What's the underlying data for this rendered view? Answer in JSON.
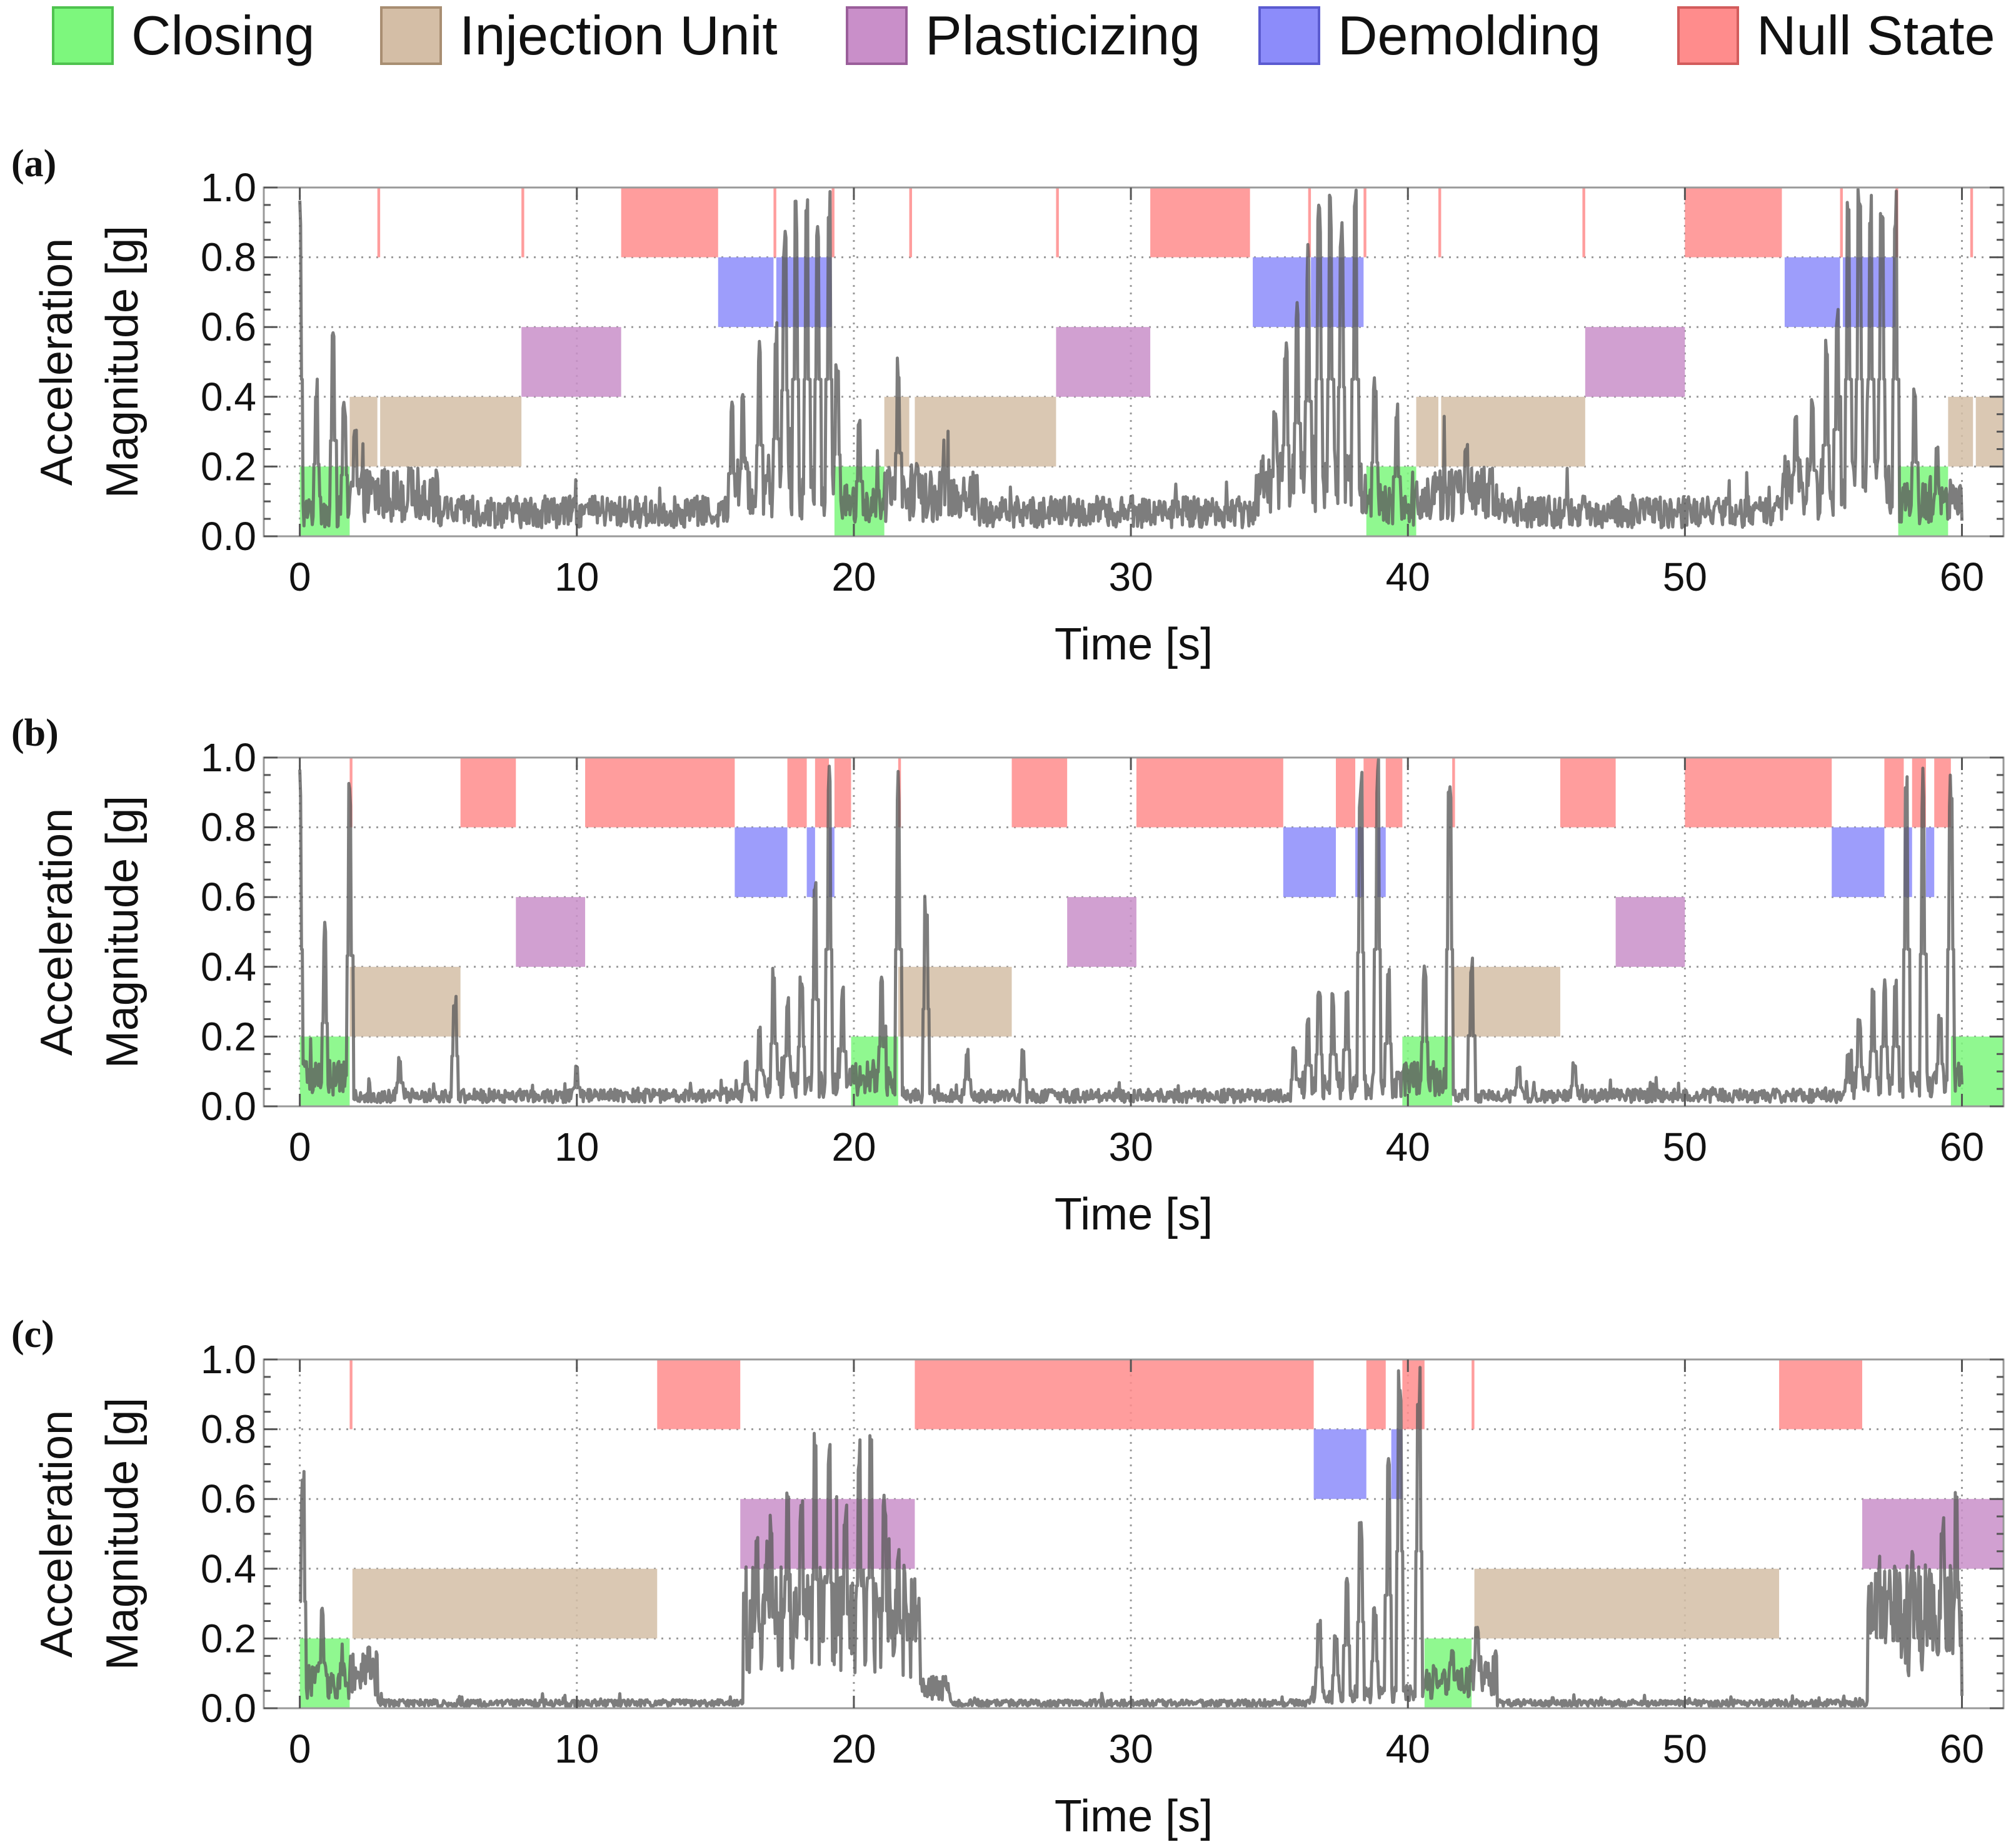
{
  "chart_data": [
    {
      "panel": "(a)",
      "type": "area",
      "xlabel": "Time [s]",
      "ylabel": [
        "Acceleration",
        "Magnitude [g]"
      ],
      "xlim": [
        -1.3,
        61.5
      ],
      "ylim": [
        0,
        1.0
      ],
      "xticks": [
        0,
        10,
        20,
        30,
        40,
        50,
        60
      ],
      "yticks": [
        "0.0",
        "0.2",
        "0.4",
        "0.6",
        "0.8",
        "1.0"
      ],
      "grid": true,
      "state_intervals": {
        "closing": [
          [
            0,
            1.8
          ],
          [
            19.3,
            21.1
          ],
          [
            38.5,
            40.3
          ],
          [
            57.7,
            59.5
          ]
        ],
        "injection": [
          [
            1.8,
            2.8
          ],
          [
            2.9,
            8.0
          ],
          [
            21.1,
            22.0
          ],
          [
            22.2,
            27.3
          ],
          [
            40.3,
            41.1
          ],
          [
            41.2,
            46.4
          ],
          [
            59.5,
            60.4
          ],
          [
            60.5,
            61.5
          ]
        ],
        "plasticizing": [
          [
            8.0,
            11.6
          ],
          [
            27.3,
            30.7
          ],
          [
            46.4,
            50.0
          ]
        ],
        "demolding": [
          [
            15.1,
            17.1
          ],
          [
            17.2,
            19.2
          ],
          [
            34.4,
            36.4
          ],
          [
            36.5,
            38.4
          ],
          [
            53.6,
            55.6
          ],
          [
            55.7,
            57.6
          ]
        ],
        "null": [
          [
            2.8,
            2.9
          ],
          [
            8.0,
            8.1
          ],
          [
            11.6,
            15.1
          ],
          [
            17.1,
            17.2
          ],
          [
            19.2,
            19.3
          ],
          [
            22.0,
            22.1
          ],
          [
            27.3,
            27.4
          ],
          [
            30.7,
            34.3
          ],
          [
            36.4,
            36.5
          ],
          [
            38.4,
            38.5
          ],
          [
            41.1,
            41.2
          ],
          [
            46.3,
            46.4
          ],
          [
            50.0,
            53.5
          ],
          [
            55.6,
            55.7
          ],
          [
            57.6,
            57.7
          ],
          [
            60.3,
            60.4
          ]
        ]
      },
      "series": [
        {
          "name": "Acceleration magnitude",
          "baseline_segments": [
            [
              0,
              1.8,
              0.07
            ],
            [
              1.8,
              5,
              0.12
            ],
            [
              5,
              15.5,
              0.07
            ],
            [
              15.5,
              19.3,
              0.14
            ],
            [
              19.3,
              21.1,
              0.09
            ],
            [
              21.1,
              24.5,
              0.12
            ],
            [
              24.5,
              34.5,
              0.07
            ],
            [
              34.5,
              38.5,
              0.16
            ],
            [
              38.5,
              40.3,
              0.09
            ],
            [
              40.3,
              43.5,
              0.12
            ],
            [
              43.5,
              53.5,
              0.07
            ],
            [
              53.5,
              57.7,
              0.14
            ],
            [
              57.7,
              60,
              0.1
            ]
          ],
          "peaks": [
            [
              0.0,
              1.0
            ],
            [
              0.6,
              0.46
            ],
            [
              1.2,
              0.61
            ],
            [
              1.6,
              0.39
            ],
            [
              2.0,
              0.32
            ],
            [
              4.0,
              0.2
            ],
            [
              15.6,
              0.4
            ],
            [
              16.0,
              0.43
            ],
            [
              16.6,
              0.58
            ],
            [
              17.2,
              0.62
            ],
            [
              17.5,
              0.93
            ],
            [
              17.9,
              1.0
            ],
            [
              18.3,
              1.0
            ],
            [
              18.7,
              1.0
            ],
            [
              19.1,
              1.0
            ],
            [
              19.4,
              0.52
            ],
            [
              20.2,
              0.35
            ],
            [
              21.6,
              0.53
            ],
            [
              22.3,
              0.23
            ],
            [
              35.2,
              0.38
            ],
            [
              35.6,
              0.58
            ],
            [
              36.0,
              0.72
            ],
            [
              36.4,
              0.86
            ],
            [
              36.8,
              1.0
            ],
            [
              37.2,
              1.0
            ],
            [
              37.6,
              0.95
            ],
            [
              38.1,
              1.0
            ],
            [
              38.8,
              0.47
            ],
            [
              39.6,
              0.38
            ],
            [
              42.1,
              0.28
            ],
            [
              54.0,
              0.39
            ],
            [
              54.6,
              0.42
            ],
            [
              55.1,
              0.58
            ],
            [
              55.5,
              0.68
            ],
            [
              55.9,
              1.0
            ],
            [
              56.3,
              1.0
            ],
            [
              56.7,
              1.0
            ],
            [
              57.1,
              1.0
            ],
            [
              57.6,
              1.0
            ],
            [
              58.3,
              0.47
            ],
            [
              59.1,
              0.27
            ]
          ]
        }
      ]
    },
    {
      "panel": "(b)",
      "type": "area",
      "xlabel": "Time [s]",
      "ylabel": [
        "Acceleration",
        "Magnitude [g]"
      ],
      "xlim": [
        -1.3,
        61.5
      ],
      "ylim": [
        0,
        1.0
      ],
      "xticks": [
        0,
        10,
        20,
        30,
        40,
        50,
        60
      ],
      "yticks": [
        "0.0",
        "0.2",
        "0.4",
        "0.6",
        "0.8",
        "1.0"
      ],
      "grid": true,
      "state_intervals": {
        "closing": [
          [
            0,
            1.8
          ],
          [
            19.9,
            21.6
          ],
          [
            39.8,
            41.6
          ],
          [
            59.6,
            61.5
          ]
        ],
        "injection": [
          [
            1.8,
            5.8
          ],
          [
            21.6,
            25.7
          ],
          [
            41.6,
            45.5
          ]
        ],
        "plasticizing": [
          [
            7.8,
            10.3
          ],
          [
            27.7,
            30.2
          ],
          [
            47.5,
            50.0
          ]
        ],
        "demolding": [
          [
            15.7,
            17.6
          ],
          [
            18.3,
            18.6
          ],
          [
            19.1,
            19.3
          ],
          [
            35.5,
            37.4
          ],
          [
            38.1,
            38.4
          ],
          [
            38.9,
            39.2
          ],
          [
            55.3,
            57.2
          ],
          [
            57.9,
            58.2
          ],
          [
            58.7,
            59.0
          ]
        ],
        "null": [
          [
            1.8,
            1.9
          ],
          [
            5.8,
            7.8
          ],
          [
            10.3,
            15.7
          ],
          [
            17.6,
            18.3
          ],
          [
            18.6,
            19.1
          ],
          [
            19.3,
            19.9
          ],
          [
            21.6,
            21.7
          ],
          [
            25.7,
            27.7
          ],
          [
            30.2,
            35.5
          ],
          [
            37.4,
            38.1
          ],
          [
            38.4,
            38.9
          ],
          [
            39.2,
            39.8
          ],
          [
            41.6,
            41.7
          ],
          [
            45.5,
            47.5
          ],
          [
            50.0,
            55.3
          ],
          [
            57.2,
            57.9
          ],
          [
            58.2,
            58.7
          ],
          [
            59.0,
            59.6
          ]
        ]
      },
      "series": [
        {
          "name": "Acceleration magnitude",
          "baseline_segments": [
            [
              0,
              1.8,
              0.08
            ],
            [
              1.8,
              16.5,
              0.03
            ],
            [
              16.5,
              19.9,
              0.06
            ],
            [
              19.9,
              21.6,
              0.08
            ],
            [
              21.6,
              36,
              0.03
            ],
            [
              36,
              39.8,
              0.06
            ],
            [
              39.8,
              41.6,
              0.08
            ],
            [
              41.6,
              55.8,
              0.03
            ],
            [
              55.8,
              59.6,
              0.06
            ],
            [
              59.6,
              60,
              0.08
            ]
          ],
          "peaks": [
            [
              0.0,
              1.0
            ],
            [
              0.9,
              0.53
            ],
            [
              1.8,
              0.96
            ],
            [
              3.6,
              0.15
            ],
            [
              5.6,
              0.32
            ],
            [
              10.0,
              0.12
            ],
            [
              16.1,
              0.14
            ],
            [
              16.6,
              0.23
            ],
            [
              17.1,
              0.4
            ],
            [
              17.6,
              0.32
            ],
            [
              18.1,
              0.38
            ],
            [
              18.6,
              0.68
            ],
            [
              19.1,
              1.0
            ],
            [
              19.6,
              0.35
            ],
            [
              21.0,
              0.38
            ],
            [
              21.6,
              1.0
            ],
            [
              22.6,
              0.62
            ],
            [
              24.1,
              0.17
            ],
            [
              26.1,
              0.17
            ],
            [
              35.9,
              0.17
            ],
            [
              36.4,
              0.26
            ],
            [
              36.8,
              0.33
            ],
            [
              37.3,
              0.33
            ],
            [
              37.8,
              0.36
            ],
            [
              38.3,
              0.98
            ],
            [
              38.9,
              1.0
            ],
            [
              39.3,
              0.4
            ],
            [
              40.6,
              0.41
            ],
            [
              41.5,
              1.0
            ],
            [
              42.3,
              0.45
            ],
            [
              44.0,
              0.12
            ],
            [
              46.0,
              0.13
            ],
            [
              55.9,
              0.15
            ],
            [
              56.3,
              0.25
            ],
            [
              56.8,
              0.35
            ],
            [
              57.2,
              0.38
            ],
            [
              57.6,
              0.38
            ],
            [
              58.0,
              1.0
            ],
            [
              58.6,
              0.97
            ],
            [
              59.2,
              0.27
            ],
            [
              59.6,
              1.0
            ]
          ]
        }
      ]
    },
    {
      "panel": "(c)",
      "type": "area",
      "xlabel": "Time [s]",
      "ylabel": [
        "Acceleration",
        "Magnitude [g]"
      ],
      "xlim": [
        -1.3,
        61.5
      ],
      "ylim": [
        0,
        1.0
      ],
      "xticks": [
        0,
        10,
        20,
        30,
        40,
        50,
        60
      ],
      "yticks": [
        "0.0",
        "0.2",
        "0.4",
        "0.6",
        "0.8",
        "1.0"
      ],
      "grid": true,
      "state_intervals": {
        "closing": [
          [
            0,
            1.8
          ],
          [
            40.6,
            42.3
          ]
        ],
        "injection": [
          [
            1.9,
            12.9
          ],
          [
            42.4,
            53.4
          ]
        ],
        "plasticizing": [
          [
            15.9,
            22.2
          ],
          [
            56.4,
            61.5
          ]
        ],
        "demolding": [
          [
            36.6,
            38.5
          ],
          [
            39.4,
            39.8
          ]
        ],
        "null": [
          [
            1.8,
            1.9
          ],
          [
            12.9,
            15.9
          ],
          [
            22.2,
            36.6
          ],
          [
            38.5,
            39.2
          ],
          [
            39.8,
            40.6
          ],
          [
            42.3,
            42.4
          ],
          [
            53.4,
            56.4
          ]
        ]
      },
      "series": [
        {
          "name": "Acceleration magnitude",
          "baseline_segments": [
            [
              0,
              1.8,
              0.08
            ],
            [
              1.8,
              2.8,
              0.1
            ],
            [
              2.8,
              16.0,
              0.015
            ],
            [
              16.0,
              22.4,
              0.25
            ],
            [
              22.4,
              23.5,
              0.06
            ],
            [
              23.5,
              36.5,
              0.015
            ],
            [
              36.5,
              40.6,
              0.04
            ],
            [
              40.6,
              42.3,
              0.08
            ],
            [
              42.3,
              43.2,
              0.1
            ],
            [
              43.2,
              56.6,
              0.015
            ],
            [
              56.6,
              60,
              0.25
            ]
          ],
          "peaks": [
            [
              0.1,
              0.68
            ],
            [
              0.8,
              0.29
            ],
            [
              2.5,
              0.19
            ],
            [
              16.5,
              0.49
            ],
            [
              17.0,
              0.58
            ],
            [
              17.6,
              0.62
            ],
            [
              18.1,
              0.6
            ],
            [
              18.6,
              0.82
            ],
            [
              19.1,
              0.8
            ],
            [
              19.7,
              0.6
            ],
            [
              20.2,
              0.78
            ],
            [
              20.6,
              0.83
            ],
            [
              21.1,
              0.62
            ],
            [
              21.6,
              0.48
            ],
            [
              36.8,
              0.26
            ],
            [
              37.4,
              0.21
            ],
            [
              37.8,
              0.4
            ],
            [
              38.3,
              0.55
            ],
            [
              38.8,
              0.3
            ],
            [
              39.3,
              0.72
            ],
            [
              39.7,
              1.0
            ],
            [
              40.4,
              1.0
            ],
            [
              41.6,
              0.18
            ],
            [
              42.5,
              0.24
            ],
            [
              57.0,
              0.45
            ],
            [
              57.6,
              0.43
            ],
            [
              58.2,
              0.45
            ],
            [
              58.8,
              0.4
            ],
            [
              59.3,
              0.55
            ],
            [
              59.8,
              0.62
            ]
          ]
        }
      ]
    }
  ],
  "legend": [
    {
      "key": "closing",
      "label": "Closing",
      "fill": "#7df77d",
      "stroke": "#4fc34f"
    },
    {
      "key": "injection",
      "label": "Injection Unit",
      "fill": "#d4bea6",
      "stroke": "#a88e72"
    },
    {
      "key": "plasticizing",
      "label": "Plasticizing",
      "fill": "#c98fc9",
      "stroke": "#9a5e9a"
    },
    {
      "key": "demolding",
      "label": "Demolding",
      "fill": "#8c8cfa",
      "stroke": "#5b5bd0"
    },
    {
      "key": "null",
      "label": "Null State",
      "fill": "#ff8c8c",
      "stroke": "#d25c5c"
    }
  ],
  "colors": {
    "signal": "#5c5c5c",
    "grid": "#9a9a9a",
    "frame": "#999999"
  }
}
